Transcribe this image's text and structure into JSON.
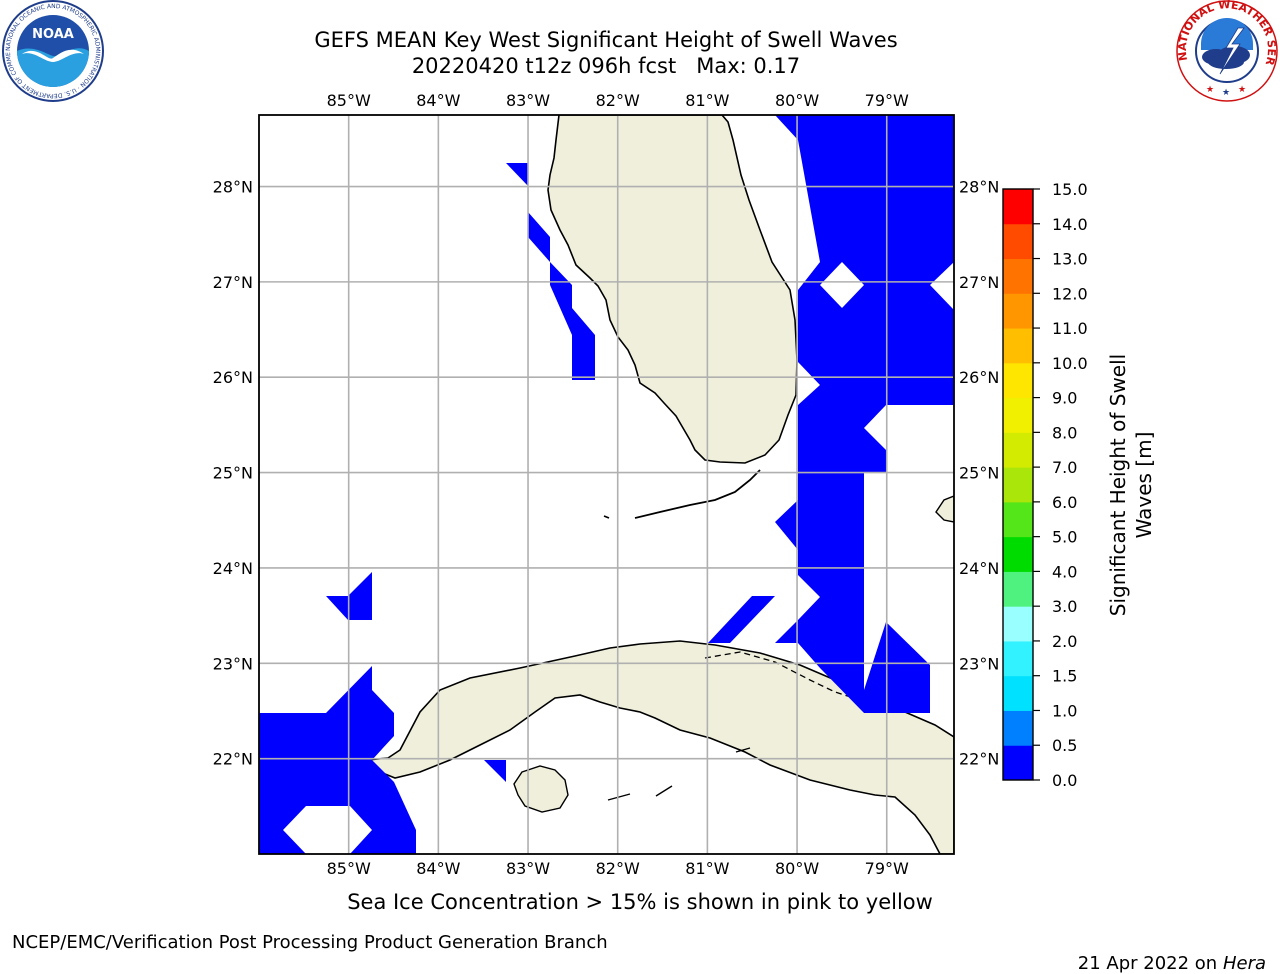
{
  "title": {
    "line1": "GEFS MEAN Key West Significant Height of Swell Waves",
    "line2": "20220420 t12z 096h fcst   Max: 0.17"
  },
  "map": {
    "lon_ticks": [
      "85°W",
      "84°W",
      "83°W",
      "82°W",
      "81°W",
      "80°W",
      "79°W"
    ],
    "lat_ticks": [
      "28°N",
      "27°N",
      "26°N",
      "25°N",
      "24°N",
      "23°N",
      "22°N"
    ],
    "lon_values": [
      -85,
      -84,
      -83,
      -82,
      -81,
      -80,
      -79
    ],
    "lat_values": [
      28,
      27,
      26,
      25,
      24,
      23,
      22
    ],
    "extent": {
      "lon_min": -86.0,
      "lon_max": -78.25,
      "lat_min": 21.0,
      "lat_max": 28.75
    },
    "land_color": "#efefdc",
    "water_color": "#ffffff",
    "swell_color": "#0000ff",
    "grid_color": "#b0b0b0",
    "swell_areas": [
      "Atlantic east of Florida (79°W–80°W, 22.5°N–28.7°N)",
      "Gulf of Mexico coastal strip west of Florida",
      "Yucatan Channel / western Cuba",
      "Straits of Florida near Cay Sal"
    ]
  },
  "colorbar": {
    "label": "Significant Height of Swell Waves [m]",
    "label_line1": "Significant Height of Swell",
    "label_line2": "Waves [m]",
    "ticks": [
      "15.0",
      "14.0",
      "13.0",
      "12.0",
      "11.0",
      "10.0",
      "9.0",
      "8.0",
      "7.0",
      "6.0",
      "5.0",
      "4.0",
      "3.0",
      "2.0",
      "1.5",
      "1.0",
      "0.5",
      "0.0"
    ],
    "bins": [
      {
        "range": "0.0–0.5",
        "color": "#0000ff"
      },
      {
        "range": "0.5–1.0",
        "color": "#0080ff"
      },
      {
        "range": "1.0–1.5",
        "color": "#00e0ff"
      },
      {
        "range": "1.5–2.0",
        "color": "#33f2ff"
      },
      {
        "range": "2.0–3.0",
        "color": "#99ffff"
      },
      {
        "range": "3.0–4.0",
        "color": "#4ff27f"
      },
      {
        "range": "4.0–5.0",
        "color": "#00dc00"
      },
      {
        "range": "5.0–6.0",
        "color": "#55e61a"
      },
      {
        "range": "6.0–7.0",
        "color": "#aae60a"
      },
      {
        "range": "7.0–8.0",
        "color": "#d2eb00"
      },
      {
        "range": "8.0–9.0",
        "color": "#f0f000"
      },
      {
        "range": "9.0–10.0",
        "color": "#ffe600"
      },
      {
        "range": "10.0–11.0",
        "color": "#ffbe00"
      },
      {
        "range": "11.0–12.0",
        "color": "#ff9600"
      },
      {
        "range": "12.0–13.0",
        "color": "#ff7300"
      },
      {
        "range": "13.0–14.0",
        "color": "#ff4b00"
      },
      {
        "range": "14.0–15.0",
        "color": "#ff0000"
      }
    ]
  },
  "note": "Sea Ice Concentration > 15% is shown in pink to yellow",
  "footer": {
    "left": "NCEP/EMC/Verification Post Processing Product Generation Branch",
    "right_date": "21 Apr 2022 on ",
    "right_host": "Hera"
  },
  "logos": {
    "noaa": "NOAA",
    "noaa_ring_text": "NATIONAL OCEANIC AND ATMOSPHERIC ADMINISTRATION · U.S. DEPARTMENT OF COMMERCE",
    "nws_ring_text": "NATIONAL WEATHER SERVICE"
  }
}
